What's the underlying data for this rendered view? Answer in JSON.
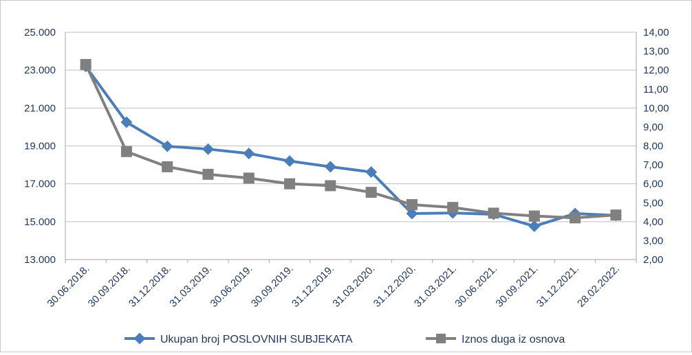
{
  "chart_data": {
    "type": "line",
    "categories": [
      "30.06.2018.",
      "30.09.2018.",
      "31.12.2018.",
      "31.03.2019.",
      "30.06.2019.",
      "30.09.2019.",
      "31.12.2019.",
      "31.03.2020.",
      "31.12.2020.",
      "31.03.2021.",
      "30.06.2021.",
      "30.09.2021.",
      "31.12.2021.",
      "28.02.2022."
    ],
    "y_left": {
      "range": [
        13000,
        25000
      ],
      "ticks": [
        "13.000",
        "15.000",
        "17.000",
        "19.000",
        "21.000",
        "23.000",
        "25.000"
      ]
    },
    "y_right": {
      "range": [
        2,
        14
      ],
      "ticks": [
        "2,00",
        "3,00",
        "4,00",
        "5,00",
        "6,00",
        "7,00",
        "8,00",
        "9,00",
        "10,00",
        "11,00",
        "12,00",
        "13,00",
        "14,00"
      ]
    },
    "grid": true,
    "legend_position": "bottom",
    "series": [
      {
        "name": "Ukupan broj POSLOVNIH SUBJEKATA",
        "axis": "left",
        "color": "#4a7ebb",
        "marker": "diamond",
        "values": [
          23200,
          20250,
          18980,
          18830,
          18600,
          18200,
          17900,
          17620,
          15430,
          15460,
          15390,
          14760,
          15430,
          15330
        ]
      },
      {
        "name": "Iznos duga iz osnova",
        "axis": "right",
        "color": "#808080",
        "marker": "square",
        "values": [
          12.3,
          7.7,
          6.9,
          6.5,
          6.3,
          6.0,
          5.9,
          5.55,
          4.9,
          4.75,
          4.45,
          4.3,
          4.2,
          4.35
        ]
      }
    ]
  }
}
